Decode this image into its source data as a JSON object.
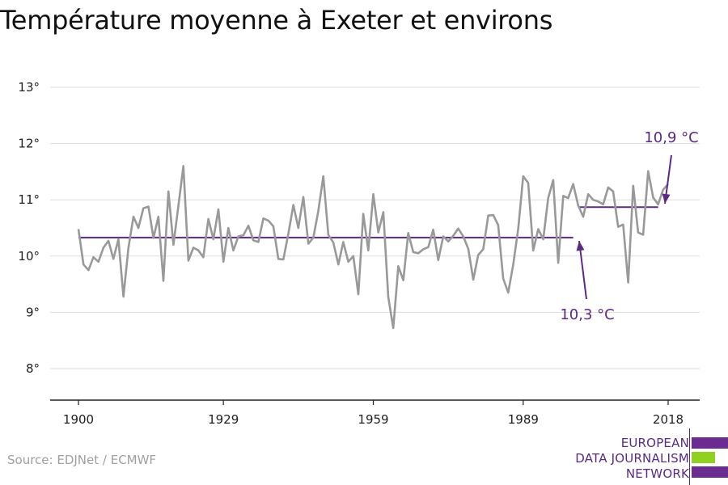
{
  "title": "Température moyenne à Exeter et environs",
  "source": "Source: EDJNet / ECMWF",
  "logo": {
    "lines": [
      "EUROPEAN",
      "DATA JOURNALISM",
      "NETWORK"
    ],
    "colors": {
      "purple": "#6a2c91",
      "green": "#8fd11e"
    }
  },
  "colors": {
    "line": "#999999",
    "mean": "#5a2a85",
    "grid": "#dddddd",
    "axis": "#222222"
  },
  "chart_data": {
    "type": "line",
    "title": "Température moyenne à Exeter et environs",
    "xlabel": "",
    "ylabel": "",
    "xlim": [
      1900,
      2018
    ],
    "ylim": [
      7.5,
      13.5
    ],
    "x_ticks": [
      1900,
      1929,
      1959,
      1989,
      2018
    ],
    "x_tick_labels": [
      "1900",
      "1929",
      "1959",
      "1989",
      "2018"
    ],
    "y_ticks": [
      8,
      9,
      10,
      11,
      12,
      13
    ],
    "y_tick_labels": [
      "8°",
      "9°",
      "10°",
      "11°",
      "12°",
      "13°"
    ],
    "grid": true,
    "series": [
      {
        "x": [
          1900,
          1901,
          1902,
          1903,
          1904,
          1905,
          1906,
          1907,
          1908,
          1909,
          1910,
          1911,
          1912,
          1913,
          1914,
          1915,
          1916,
          1917,
          1918,
          1919,
          1920,
          1921,
          1922,
          1923,
          1924,
          1925,
          1926,
          1927,
          1928,
          1929,
          1930,
          1931,
          1932,
          1933,
          1934,
          1935,
          1936,
          1937,
          1938,
          1939,
          1940,
          1941,
          1942,
          1943,
          1944,
          1945,
          1946,
          1947,
          1948,
          1949,
          1950,
          1951,
          1952,
          1953,
          1954,
          1955,
          1956,
          1957,
          1958,
          1959,
          1960,
          1961,
          1962,
          1963,
          1964,
          1965,
          1966,
          1967,
          1968,
          1969,
          1970,
          1971,
          1972,
          1973,
          1974,
          1975,
          1976,
          1977,
          1978,
          1979,
          1980,
          1981,
          1982,
          1983,
          1984,
          1985,
          1986,
          1987,
          1988,
          1989,
          1990,
          1991,
          1992,
          1993,
          1994,
          1995,
          1996,
          1997,
          1998,
          1999,
          2000,
          2001,
          2002,
          2003,
          2004,
          2005,
          2006,
          2007,
          2008,
          2009,
          2010,
          2011,
          2012,
          2013,
          2014,
          2015,
          2016,
          2017,
          2018
        ],
        "values": [
          10.48,
          9.85,
          9.75,
          9.98,
          9.9,
          10.15,
          10.27,
          9.95,
          10.3,
          9.28,
          10.15,
          10.7,
          10.5,
          10.85,
          10.88,
          10.32,
          10.7,
          9.56,
          11.15,
          10.2,
          10.9,
          11.6,
          9.92,
          10.15,
          10.1,
          9.98,
          10.66,
          10.3,
          10.83,
          9.9,
          10.5,
          10.1,
          10.35,
          10.37,
          10.54,
          10.28,
          10.25,
          10.67,
          10.63,
          10.53,
          9.95,
          9.94,
          10.4,
          10.91,
          10.5,
          11.05,
          10.22,
          10.33,
          10.8,
          11.42,
          10.38,
          10.24,
          9.85,
          10.25,
          9.9,
          10.0,
          9.32,
          10.75,
          10.1,
          11.1,
          10.42,
          10.78,
          9.27,
          8.72,
          9.82,
          9.57,
          10.41,
          10.07,
          10.05,
          10.12,
          10.16,
          10.47,
          9.93,
          10.35,
          10.26,
          10.36,
          10.49,
          10.35,
          10.13,
          9.58,
          10.02,
          10.12,
          10.72,
          10.73,
          10.55,
          9.6,
          9.35,
          9.85,
          10.49,
          11.42,
          11.3,
          10.1,
          10.48,
          10.3,
          11.03,
          11.35,
          9.88,
          11.07,
          11.03,
          11.28,
          10.9,
          10.7,
          11.1,
          11.0,
          10.97,
          10.92,
          11.22,
          11.15,
          10.52,
          10.56,
          9.53,
          11.25,
          10.42,
          10.38,
          11.51,
          11.04,
          10.92,
          11.18,
          11.28
        ]
      }
    ],
    "annotations": [
      {
        "text": "10,3 °C",
        "value": 10.33,
        "from": 1900,
        "to": 1999
      },
      {
        "text": "10,9 °C",
        "value": 10.87,
        "from": 2000,
        "to": 2016
      }
    ]
  }
}
